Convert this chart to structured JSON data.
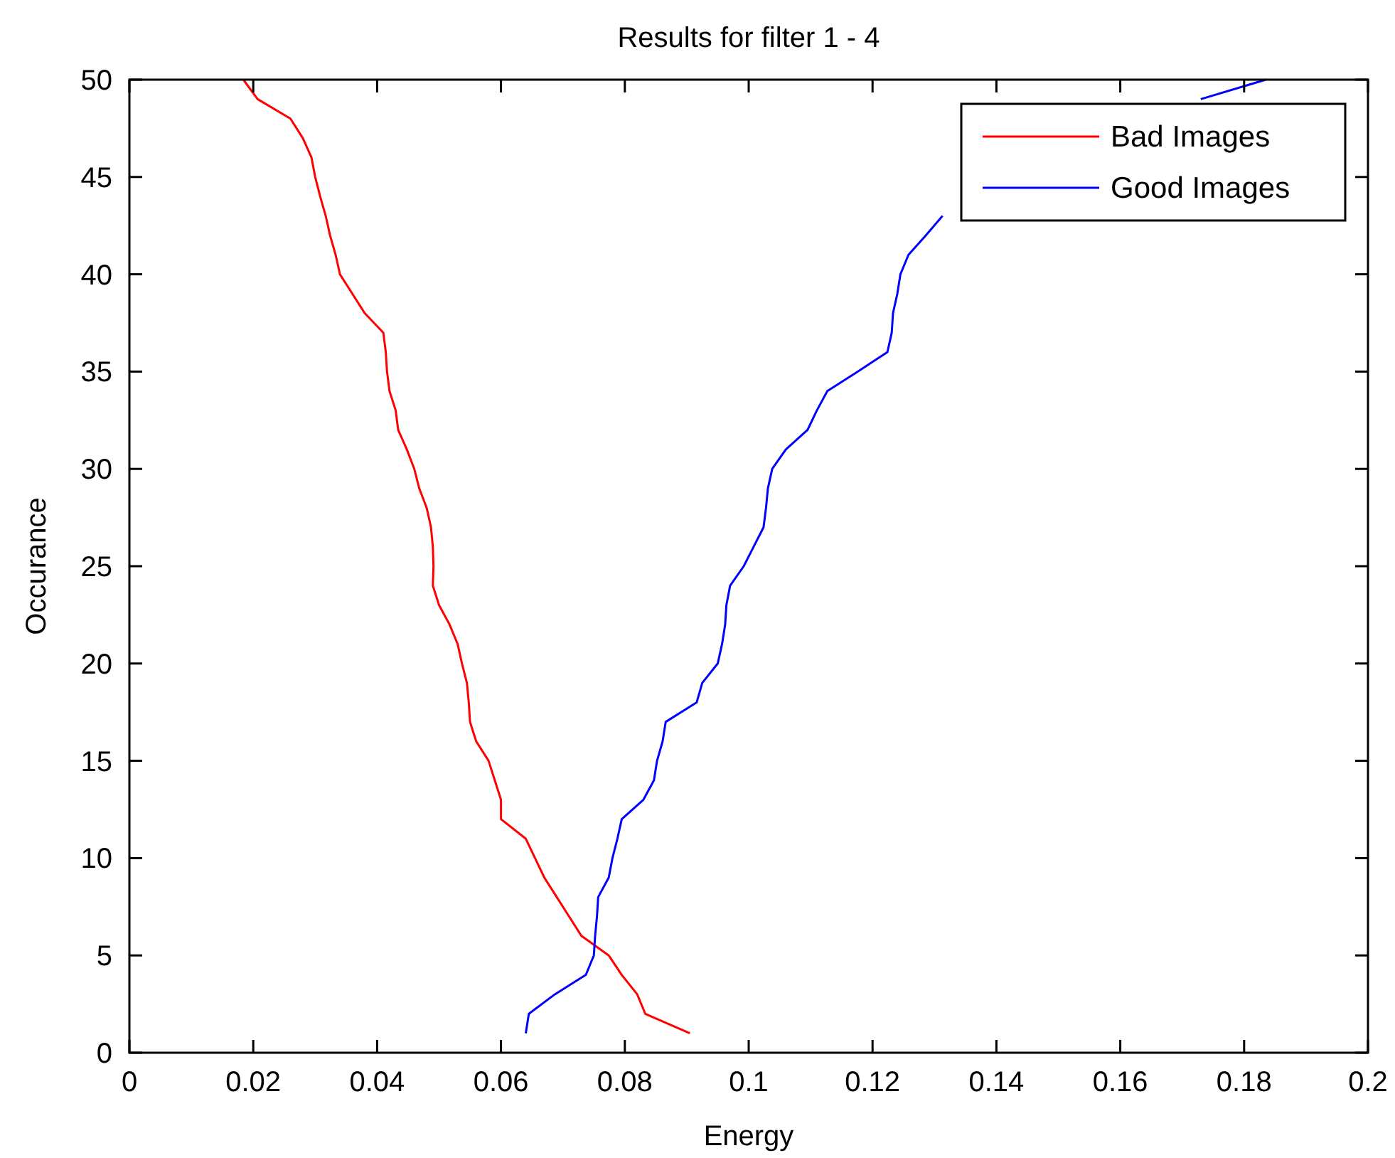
{
  "chart_data": {
    "type": "line",
    "title": "Results for filter 1 - 4",
    "xlabel": "Energy",
    "ylabel": "Occurance",
    "xlim": [
      0,
      0.2
    ],
    "xticks": [
      0,
      0.02,
      0.04,
      0.06,
      0.08,
      0.1,
      0.12,
      0.14,
      0.16,
      0.18,
      0.2
    ],
    "ylim": [
      0,
      50
    ],
    "yticks": [
      0,
      5,
      10,
      15,
      20,
      25,
      30,
      35,
      40,
      45,
      50
    ],
    "legend": "top right",
    "grid": false,
    "line_style": "solid",
    "marker": "none",
    "series": [
      {
        "name": "Bad Images",
        "color": "#ff0000",
        "x": [
          0.0905,
          0.0833,
          0.082,
          0.0795,
          0.0774,
          0.073,
          0.071,
          0.069,
          0.067,
          0.0655,
          0.064,
          0.06,
          0.06,
          0.059,
          0.058,
          0.056,
          0.055,
          0.0548,
          0.0545,
          0.0537,
          0.053,
          0.0517,
          0.05,
          0.049,
          0.0491,
          0.049,
          0.0487,
          0.048,
          0.0468,
          0.046,
          0.0448,
          0.0434,
          0.043,
          0.042,
          0.0416,
          0.0414,
          0.041,
          0.038,
          0.036,
          0.034,
          0.0333,
          0.0324,
          0.0317,
          0.0308,
          0.03,
          0.0294,
          0.028,
          0.026,
          0.0207,
          0.0184
        ],
        "values": [
          1,
          2,
          3,
          4,
          5,
          6,
          7,
          8,
          9,
          10,
          11,
          12,
          13,
          14,
          15,
          16,
          17,
          18,
          19,
          20,
          21,
          22,
          23,
          24,
          25,
          26,
          27,
          28,
          29,
          30,
          31,
          32,
          33,
          34,
          35,
          36,
          37,
          38,
          39,
          40,
          41,
          42,
          43,
          44,
          45,
          46,
          47,
          48,
          49,
          50
        ]
      },
      {
        "name": "Good Images",
        "color": "#0000ff",
        "x": [
          0.064,
          0.0645,
          0.0687,
          0.0737,
          0.075,
          0.0752,
          0.0755,
          0.0757,
          0.0774,
          0.078,
          0.0788,
          0.0795,
          0.083,
          0.0847,
          0.0852,
          0.0861,
          0.0866,
          0.0916,
          0.0925,
          0.095,
          0.0957,
          0.0962,
          0.0964,
          0.097,
          0.0992,
          0.1008,
          0.1024,
          0.1028,
          0.1031,
          0.1038,
          0.106,
          0.1095,
          0.111,
          0.1127,
          0.1176,
          0.1224,
          0.1231,
          0.1233,
          0.124,
          0.1245,
          0.1258,
          0.1286,
          0.1313,
          null,
          null,
          null,
          null,
          null,
          0.173,
          0.1835
        ],
        "values": [
          1,
          2,
          3,
          4,
          5,
          6,
          7,
          8,
          9,
          10,
          11,
          12,
          13,
          14,
          15,
          16,
          17,
          18,
          19,
          20,
          21,
          22,
          23,
          24,
          25,
          26,
          27,
          28,
          29,
          30,
          31,
          32,
          33,
          34,
          35,
          36,
          37,
          38,
          39,
          40,
          41,
          42,
          43,
          null,
          null,
          null,
          null,
          null,
          49,
          50
        ]
      }
    ]
  }
}
